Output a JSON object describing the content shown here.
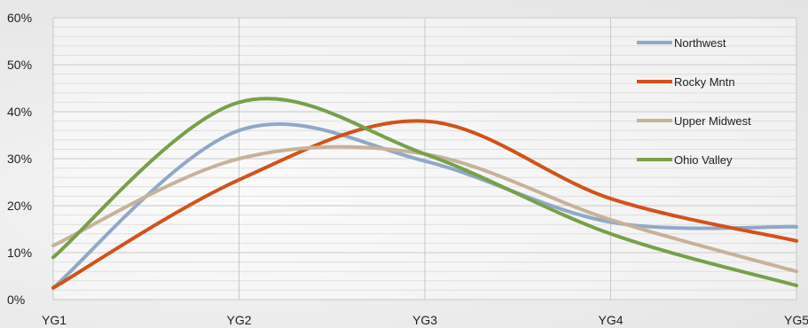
{
  "chart_data": {
    "type": "line",
    "title": "",
    "xlabel": "",
    "ylabel": "",
    "categories": [
      "YG1",
      "YG2",
      "YG3",
      "YG4",
      "YG5"
    ],
    "y_ticks": [
      "0%",
      "10%",
      "20%",
      "30%",
      "40%",
      "50%",
      "60%"
    ],
    "ylim": [
      0,
      60
    ],
    "y_unit": "%",
    "grid": true,
    "legend_position": "top-right",
    "series": [
      {
        "name": "Northwest",
        "color": "#8fa8c8",
        "values": [
          2.5,
          36,
          29.5,
          16.5,
          15.5
        ]
      },
      {
        "name": "Rocky Mntn",
        "color": "#d2521a",
        "values": [
          2.5,
          25.5,
          38,
          21.5,
          12.5
        ]
      },
      {
        "name": "Upper Midwest",
        "color": "#c7b299",
        "values": [
          11.5,
          30,
          31,
          17,
          6
        ]
      },
      {
        "name": "Ohio Valley",
        "color": "#77a04a",
        "values": [
          9,
          42,
          31,
          14,
          3
        ]
      }
    ]
  }
}
